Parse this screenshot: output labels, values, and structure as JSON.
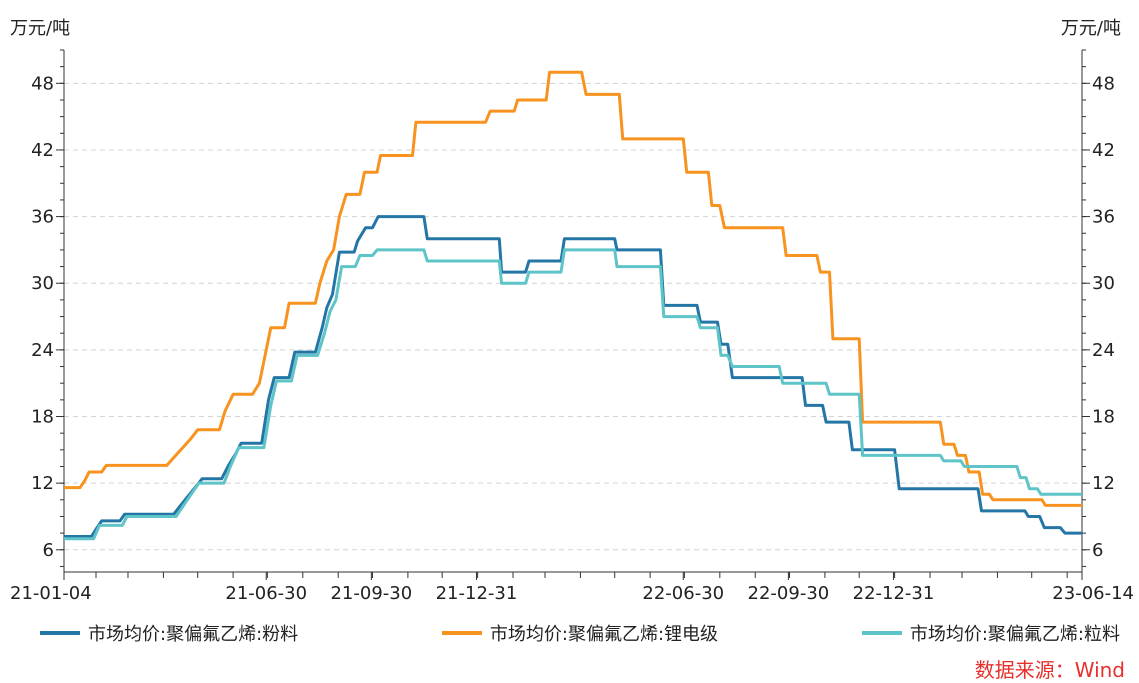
{
  "chart_data": {
    "type": "line",
    "title": "",
    "unit_left": "万元/吨",
    "unit_right": "万元/吨",
    "ylim": [
      4,
      51
    ],
    "yticks": [
      6,
      12,
      18,
      24,
      30,
      36,
      42,
      48
    ],
    "x_range": [
      "2021-01-04",
      "2023-06-14"
    ],
    "xtick_labels": [
      {
        "date": "2021-01-04",
        "label": "21-01-04"
      },
      {
        "date": "2021-06-30",
        "label": "21-06-30"
      },
      {
        "date": "2021-09-30",
        "label": "21-09-30"
      },
      {
        "date": "2021-12-31",
        "label": "21-12-31"
      },
      {
        "date": "2022-06-30",
        "label": "22-06-30"
      },
      {
        "date": "2022-09-30",
        "label": "22-09-30"
      },
      {
        "date": "2022-12-31",
        "label": "22-12-31"
      },
      {
        "date": "2023-06-14",
        "label": "23-06-14"
      }
    ],
    "grid": true,
    "legend_position": "bottom",
    "source": "数据来源：Wind",
    "series": [
      {
        "name": "市场均价:聚偏氟乙烯:粉料",
        "color": "#2476a6",
        "points": [
          [
            "2021-01-04",
            7.2
          ],
          [
            "2021-01-28",
            7.2
          ],
          [
            "2021-02-02",
            8.0
          ],
          [
            "2021-02-06",
            8.6
          ],
          [
            "2021-02-22",
            8.6
          ],
          [
            "2021-02-26",
            9.2
          ],
          [
            "2021-04-10",
            9.2
          ],
          [
            "2021-04-20",
            10.5
          ],
          [
            "2021-04-28",
            11.5
          ],
          [
            "2021-05-05",
            12.4
          ],
          [
            "2021-05-22",
            12.4
          ],
          [
            "2021-05-28",
            13.6
          ],
          [
            "2021-06-03",
            14.6
          ],
          [
            "2021-06-08",
            15.6
          ],
          [
            "2021-06-26",
            15.6
          ],
          [
            "2021-07-02",
            19.5
          ],
          [
            "2021-07-07",
            21.5
          ],
          [
            "2021-07-20",
            21.5
          ],
          [
            "2021-07-25",
            23.8
          ],
          [
            "2021-08-12",
            23.8
          ],
          [
            "2021-08-18",
            26.0
          ],
          [
            "2021-08-22",
            27.8
          ],
          [
            "2021-08-27",
            29.0
          ],
          [
            "2021-09-02",
            32.8
          ],
          [
            "2021-09-15",
            32.8
          ],
          [
            "2021-09-18",
            33.8
          ],
          [
            "2021-09-25",
            35.0
          ],
          [
            "2021-10-01",
            35.0
          ],
          [
            "2021-10-06",
            36.0
          ],
          [
            "2021-11-15",
            36.0
          ],
          [
            "2021-11-18",
            34.0
          ],
          [
            "2022-01-20",
            34.0
          ],
          [
            "2022-01-22",
            31.0
          ],
          [
            "2022-02-12",
            31.0
          ],
          [
            "2022-02-15",
            32.0
          ],
          [
            "2022-03-15",
            32.0
          ],
          [
            "2022-03-18",
            34.0
          ],
          [
            "2022-05-01",
            34.0
          ],
          [
            "2022-05-03",
            33.0
          ],
          [
            "2022-06-10",
            33.0
          ],
          [
            "2022-06-13",
            28.0
          ],
          [
            "2022-07-12",
            28.0
          ],
          [
            "2022-07-15",
            26.5
          ],
          [
            "2022-07-30",
            26.5
          ],
          [
            "2022-08-02",
            24.5
          ],
          [
            "2022-08-08",
            24.5
          ],
          [
            "2022-08-12",
            21.5
          ],
          [
            "2022-10-12",
            21.5
          ],
          [
            "2022-10-15",
            19.0
          ],
          [
            "2022-10-30",
            19.0
          ],
          [
            "2022-11-02",
            17.5
          ],
          [
            "2022-11-22",
            17.5
          ],
          [
            "2022-11-25",
            15.0
          ],
          [
            "2023-01-01",
            15.0
          ],
          [
            "2023-01-05",
            11.5
          ],
          [
            "2023-03-15",
            11.5
          ],
          [
            "2023-03-18",
            9.5
          ],
          [
            "2023-04-25",
            9.5
          ],
          [
            "2023-04-28",
            9.0
          ],
          [
            "2023-05-08",
            9.0
          ],
          [
            "2023-05-12",
            8.0
          ],
          [
            "2023-05-26",
            8.0
          ],
          [
            "2023-05-30",
            7.5
          ],
          [
            "2023-06-14",
            7.5
          ]
        ]
      },
      {
        "name": "市场均价:聚偏氟乙烯:锂电级",
        "color": "#f7931e",
        "points": [
          [
            "2021-01-04",
            11.6
          ],
          [
            "2021-01-18",
            11.6
          ],
          [
            "2021-01-22",
            12.2
          ],
          [
            "2021-01-26",
            13.0
          ],
          [
            "2021-02-06",
            13.0
          ],
          [
            "2021-02-10",
            13.6
          ],
          [
            "2021-04-04",
            13.6
          ],
          [
            "2021-04-10",
            14.3
          ],
          [
            "2021-04-18",
            15.2
          ],
          [
            "2021-04-25",
            16.0
          ],
          [
            "2021-05-01",
            16.8
          ],
          [
            "2021-05-20",
            16.8
          ],
          [
            "2021-05-25",
            18.5
          ],
          [
            "2021-06-01",
            20.0
          ],
          [
            "2021-06-18",
            20.0
          ],
          [
            "2021-06-24",
            21.0
          ],
          [
            "2021-06-30",
            24.0
          ],
          [
            "2021-07-04",
            26.0
          ],
          [
            "2021-07-16",
            26.0
          ],
          [
            "2021-07-20",
            28.2
          ],
          [
            "2021-08-12",
            28.2
          ],
          [
            "2021-08-16",
            30.0
          ],
          [
            "2021-08-22",
            32.0
          ],
          [
            "2021-08-28",
            33.0
          ],
          [
            "2021-09-02",
            36.0
          ],
          [
            "2021-09-08",
            38.0
          ],
          [
            "2021-09-20",
            38.0
          ],
          [
            "2021-09-24",
            40.0
          ],
          [
            "2021-10-05",
            40.0
          ],
          [
            "2021-10-08",
            41.5
          ],
          [
            "2021-11-05",
            41.5
          ],
          [
            "2021-11-08",
            44.5
          ],
          [
            "2022-01-08",
            44.5
          ],
          [
            "2022-01-12",
            45.5
          ],
          [
            "2022-02-02",
            45.5
          ],
          [
            "2022-02-05",
            46.5
          ],
          [
            "2022-03-02",
            46.5
          ],
          [
            "2022-03-05",
            49.0
          ],
          [
            "2022-04-02",
            49.0
          ],
          [
            "2022-04-06",
            47.0
          ],
          [
            "2022-05-05",
            47.0
          ],
          [
            "2022-05-08",
            43.0
          ],
          [
            "2022-06-30",
            43.0
          ],
          [
            "2022-07-03",
            40.0
          ],
          [
            "2022-07-22",
            40.0
          ],
          [
            "2022-07-25",
            37.0
          ],
          [
            "2022-08-01",
            37.0
          ],
          [
            "2022-08-05",
            35.0
          ],
          [
            "2022-09-25",
            35.0
          ],
          [
            "2022-09-28",
            32.5
          ],
          [
            "2022-10-25",
            32.5
          ],
          [
            "2022-10-28",
            31.0
          ],
          [
            "2022-11-05",
            31.0
          ],
          [
            "2022-11-08",
            25.0
          ],
          [
            "2022-12-01",
            25.0
          ],
          [
            "2022-12-04",
            17.5
          ],
          [
            "2023-02-10",
            17.5
          ],
          [
            "2023-02-13",
            15.5
          ],
          [
            "2023-02-22",
            15.5
          ],
          [
            "2023-02-25",
            14.5
          ],
          [
            "2023-03-04",
            14.5
          ],
          [
            "2023-03-07",
            13.0
          ],
          [
            "2023-03-16",
            13.0
          ],
          [
            "2023-03-19",
            11.0
          ],
          [
            "2023-03-25",
            11.0
          ],
          [
            "2023-03-28",
            10.5
          ],
          [
            "2023-05-10",
            10.5
          ],
          [
            "2023-05-13",
            10.0
          ],
          [
            "2023-06-14",
            10.0
          ]
        ]
      },
      {
        "name": "市场均价:聚偏氟乙烯:粒料",
        "color": "#5ec4c8",
        "points": [
          [
            "2021-01-04",
            7.0
          ],
          [
            "2021-01-30",
            7.0
          ],
          [
            "2021-02-04",
            8.2
          ],
          [
            "2021-02-24",
            8.2
          ],
          [
            "2021-02-28",
            9.0
          ],
          [
            "2021-04-12",
            9.0
          ],
          [
            "2021-04-22",
            10.5
          ],
          [
            "2021-05-02",
            12.0
          ],
          [
            "2021-05-24",
            12.0
          ],
          [
            "2021-05-30",
            13.6
          ],
          [
            "2021-06-06",
            15.2
          ],
          [
            "2021-06-28",
            15.2
          ],
          [
            "2021-07-04",
            19.0
          ],
          [
            "2021-07-09",
            21.2
          ],
          [
            "2021-07-22",
            21.2
          ],
          [
            "2021-07-27",
            23.5
          ],
          [
            "2021-08-14",
            23.5
          ],
          [
            "2021-08-20",
            25.5
          ],
          [
            "2021-08-25",
            27.5
          ],
          [
            "2021-08-30",
            28.5
          ],
          [
            "2021-09-04",
            31.5
          ],
          [
            "2021-09-16",
            31.5
          ],
          [
            "2021-09-20",
            32.5
          ],
          [
            "2021-10-01",
            32.5
          ],
          [
            "2021-10-05",
            33.0
          ],
          [
            "2021-11-15",
            33.0
          ],
          [
            "2021-11-18",
            32.0
          ],
          [
            "2022-01-20",
            32.0
          ],
          [
            "2022-01-22",
            30.0
          ],
          [
            "2022-02-12",
            30.0
          ],
          [
            "2022-02-15",
            31.0
          ],
          [
            "2022-03-15",
            31.0
          ],
          [
            "2022-03-18",
            33.0
          ],
          [
            "2022-05-01",
            33.0
          ],
          [
            "2022-05-03",
            31.5
          ],
          [
            "2022-06-10",
            31.5
          ],
          [
            "2022-06-13",
            27.0
          ],
          [
            "2022-07-12",
            27.0
          ],
          [
            "2022-07-15",
            26.0
          ],
          [
            "2022-07-30",
            26.0
          ],
          [
            "2022-08-02",
            23.5
          ],
          [
            "2022-08-08",
            23.5
          ],
          [
            "2022-08-12",
            22.5
          ],
          [
            "2022-09-22",
            22.5
          ],
          [
            "2022-09-25",
            21.0
          ],
          [
            "2022-11-02",
            21.0
          ],
          [
            "2022-11-05",
            20.0
          ],
          [
            "2022-12-01",
            20.0
          ],
          [
            "2022-12-04",
            14.5
          ],
          [
            "2023-02-10",
            14.5
          ],
          [
            "2023-02-13",
            14.0
          ],
          [
            "2023-02-28",
            14.0
          ],
          [
            "2023-03-03",
            13.5
          ],
          [
            "2023-04-18",
            13.5
          ],
          [
            "2023-04-21",
            12.5
          ],
          [
            "2023-04-26",
            12.5
          ],
          [
            "2023-04-29",
            11.5
          ],
          [
            "2023-05-06",
            11.5
          ],
          [
            "2023-05-09",
            11.0
          ],
          [
            "2023-06-14",
            11.0
          ]
        ]
      }
    ]
  }
}
